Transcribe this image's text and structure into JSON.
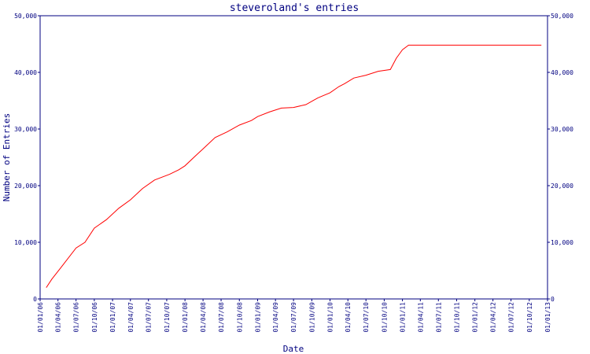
{
  "chart_data": {
    "type": "line",
    "title": "steveroland's entries",
    "xlabel": "Date",
    "ylabel": "Number of Entries",
    "colors": {
      "axis": "#000080",
      "line": "#ff0000",
      "text": "#000080"
    },
    "grid": false,
    "legend": "none",
    "ylim": [
      0,
      50000
    ],
    "xlim": [
      "2006-01-01",
      "2013-01-01"
    ],
    "y_ticks": [
      0,
      10000,
      20000,
      30000,
      40000,
      50000
    ],
    "y_tick_labels": [
      "0",
      "10,000",
      "20,000",
      "30,000",
      "40,000",
      "50,000"
    ],
    "x_tick_dates": [
      "2006-01-01",
      "2006-04-01",
      "2006-07-01",
      "2006-10-01",
      "2007-01-01",
      "2007-04-01",
      "2007-07-01",
      "2007-10-01",
      "2008-01-01",
      "2008-04-01",
      "2008-07-01",
      "2008-10-01",
      "2009-01-01",
      "2009-04-01",
      "2009-07-01",
      "2009-10-01",
      "2010-01-01",
      "2010-04-01",
      "2010-07-01",
      "2010-10-01",
      "2011-01-01",
      "2011-04-01",
      "2011-07-01",
      "2011-10-01",
      "2012-01-01",
      "2012-04-01",
      "2012-07-01",
      "2012-10-01",
      "2013-01-01"
    ],
    "x_tick_labels": [
      "01/01/06",
      "01/04/06",
      "01/07/06",
      "01/10/06",
      "01/01/07",
      "01/04/07",
      "01/07/07",
      "01/10/07",
      "01/01/08",
      "01/04/08",
      "01/07/08",
      "01/10/08",
      "01/01/09",
      "01/04/09",
      "01/07/09",
      "01/10/09",
      "01/01/10",
      "01/04/10",
      "01/07/10",
      "01/10/10",
      "01/01/11",
      "01/04/11",
      "01/07/11",
      "01/10/11",
      "01/01/12",
      "01/04/12",
      "01/07/12",
      "01/10/12",
      "01/01/13"
    ],
    "series": [
      {
        "x": [
          "2006-02-01",
          "2006-03-01",
          "2006-04-15",
          "2006-07-01",
          "2006-08-15",
          "2006-10-01",
          "2006-12-01",
          "2007-02-01",
          "2007-04-01",
          "2007-06-01",
          "2007-08-01",
          "2007-10-15",
          "2007-12-01",
          "2008-01-01",
          "2008-02-15",
          "2008-04-01",
          "2008-06-01",
          "2008-08-01",
          "2008-10-01",
          "2008-12-01",
          "2009-01-01",
          "2009-03-01",
          "2009-05-01",
          "2009-07-01",
          "2009-09-01",
          "2009-11-01",
          "2010-01-01",
          "2010-02-15",
          "2010-03-15",
          "2010-05-01",
          "2010-07-01",
          "2010-09-01",
          "2010-11-01",
          "2010-12-01",
          "2011-01-01",
          "2011-02-01",
          "2012-12-01"
        ],
        "y": [
          2000,
          3500,
          5500,
          9000,
          10000,
          12500,
          14000,
          16000,
          17500,
          19500,
          21000,
          22000,
          22800,
          23500,
          25000,
          26500,
          28500,
          29500,
          30700,
          31500,
          32200,
          33000,
          33700,
          33800,
          34300,
          35500,
          36400,
          37500,
          38000,
          39000,
          39500,
          40200,
          40500,
          42500,
          44000,
          44800,
          44800
        ]
      }
    ]
  }
}
